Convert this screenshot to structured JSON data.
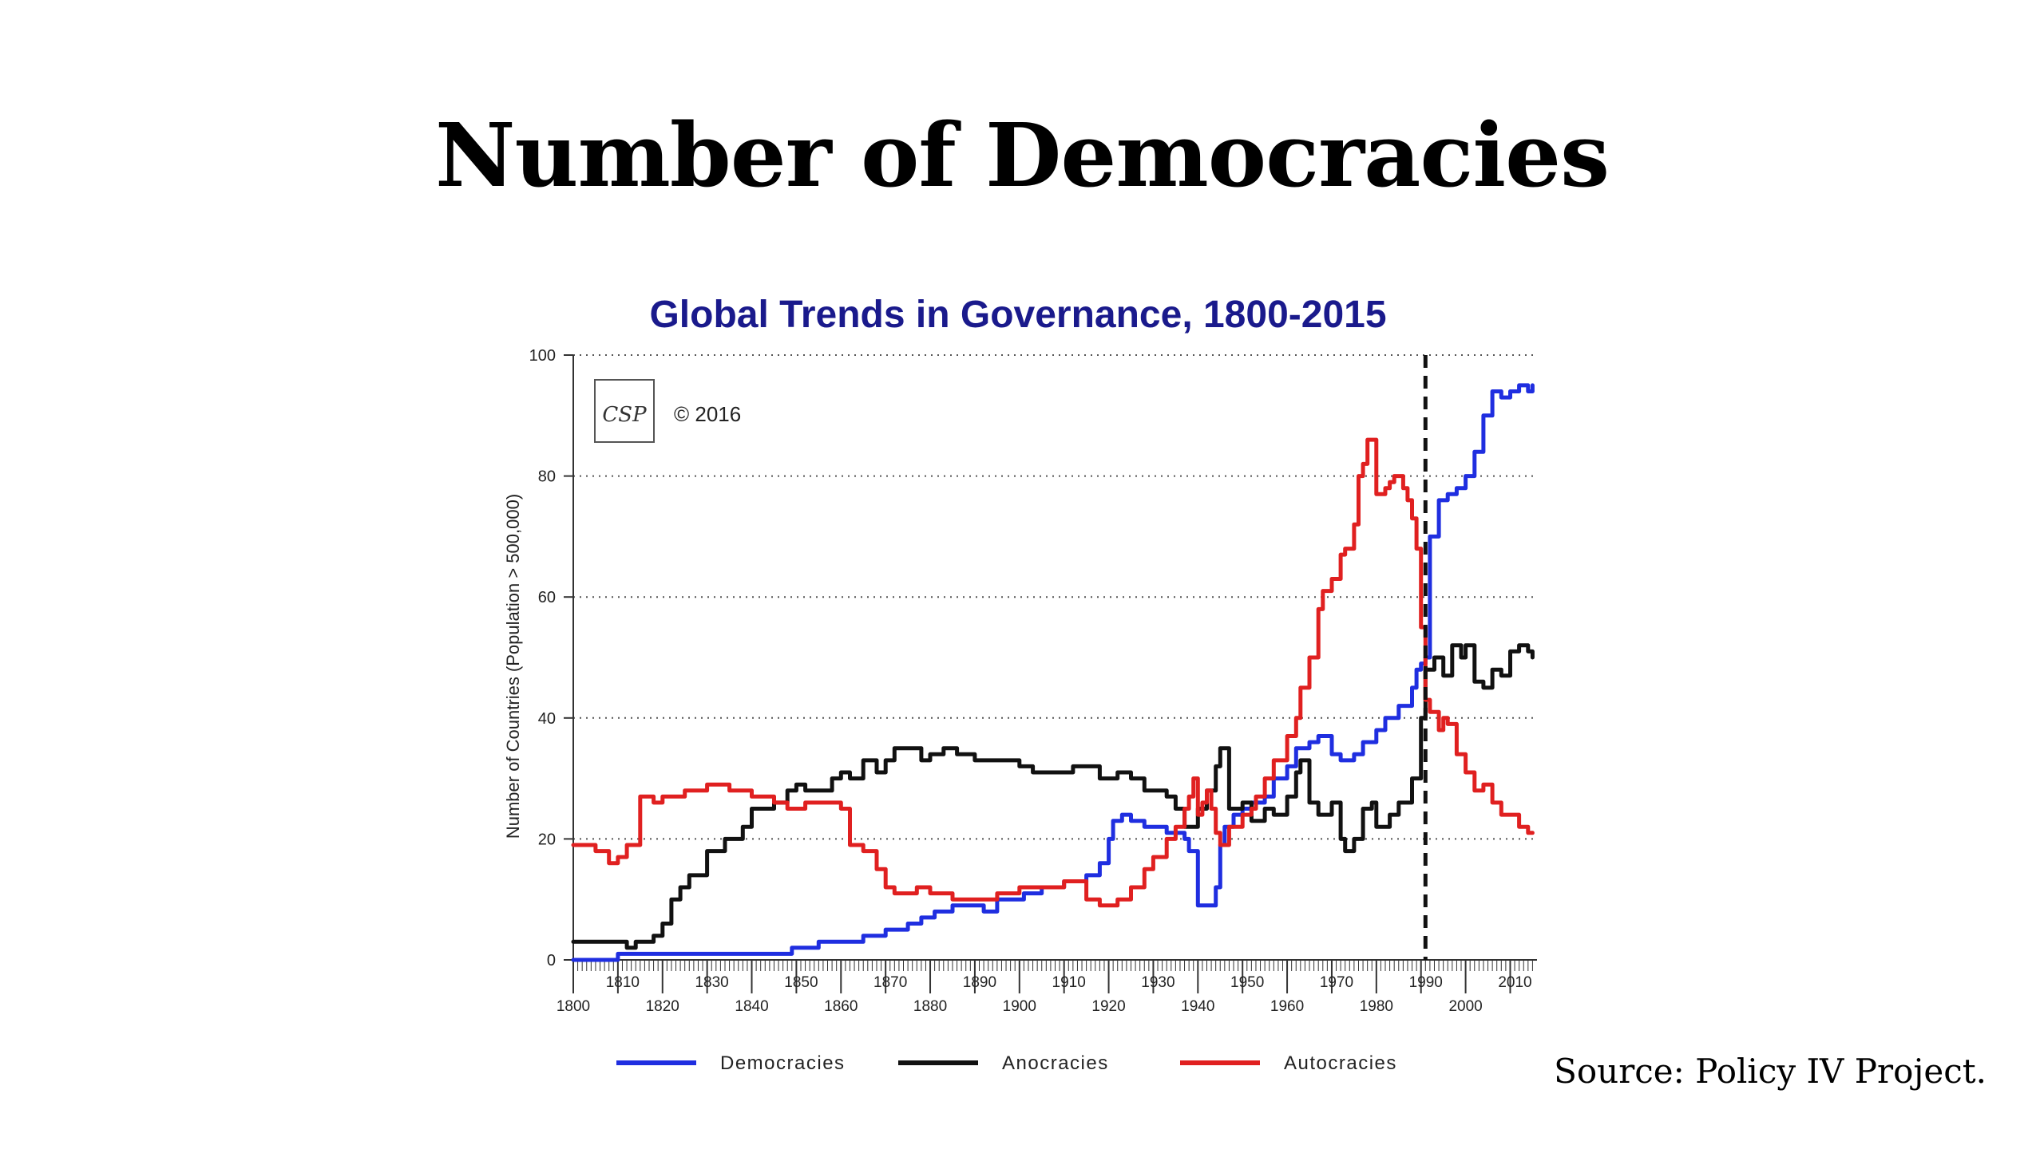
{
  "slide": {
    "title": "Number of Democracies",
    "source": "Source: Policy IV Project."
  },
  "chart_data": {
    "type": "line",
    "title": "Global Trends in Governance, 1800-2015",
    "xlabel": "",
    "ylabel": "Number of Countries (Population > 500,000)",
    "xlim": [
      1800,
      2016
    ],
    "ylim": [
      0,
      100
    ],
    "yticks": [
      0,
      20,
      40,
      60,
      80,
      100
    ],
    "xticks_major_lower": [
      1800,
      1820,
      1840,
      1860,
      1880,
      1900,
      1920,
      1940,
      1960,
      1980,
      2000
    ],
    "xticks_major_upper": [
      1810,
      1830,
      1850,
      1870,
      1890,
      1910,
      1930,
      1950,
      1970,
      1990,
      2010
    ],
    "grid": "horizontal dotted",
    "reference_line": {
      "x": 1991,
      "style": "dashed"
    },
    "logo": {
      "text": "CSP",
      "copyright": "© 2016"
    },
    "legend_position": "bottom",
    "colors": {
      "title": "#1a1a8c",
      "Democracies": "#1f2ee0",
      "Anocracies": "#111111",
      "Autocracies": "#e02020"
    },
    "series": [
      {
        "name": "Democracies",
        "x": [
          1800,
          1809,
          1810,
          1819,
          1820,
          1838,
          1840,
          1848,
          1849,
          1855,
          1860,
          1865,
          1870,
          1875,
          1878,
          1881,
          1885,
          1890,
          1892,
          1895,
          1900,
          1901,
          1905,
          1910,
          1912,
          1915,
          1917,
          1918,
          1920,
          1921,
          1923,
          1925,
          1928,
          1930,
          1933,
          1935,
          1937,
          1938,
          1940,
          1941,
          1943,
          1944,
          1945,
          1946,
          1948,
          1950,
          1952,
          1955,
          1957,
          1960,
          1962,
          1965,
          1967,
          1970,
          1972,
          1975,
          1977,
          1980,
          1982,
          1985,
          1986,
          1988,
          1989,
          1990,
          1991,
          1992,
          1994,
          1996,
          1998,
          2000,
          2002,
          2004,
          2006,
          2008,
          2010,
          2012,
          2014,
          2015
        ],
        "values": [
          0,
          0,
          1,
          1,
          1,
          1,
          1,
          1,
          2,
          3,
          3,
          4,
          5,
          6,
          7,
          8,
          9,
          9,
          8,
          10,
          10,
          11,
          12,
          13,
          13,
          14,
          14,
          16,
          20,
          23,
          24,
          23,
          22,
          22,
          21,
          21,
          20,
          18,
          9,
          9,
          9,
          12,
          19,
          22,
          24,
          25,
          26,
          27,
          30,
          32,
          35,
          36,
          37,
          34,
          33,
          34,
          36,
          38,
          40,
          42,
          42,
          45,
          48,
          49,
          50,
          70,
          76,
          77,
          78,
          80,
          84,
          90,
          94,
          93,
          94,
          95,
          94,
          95
        ]
      },
      {
        "name": "Anocracies",
        "x": [
          1800,
          1810,
          1812,
          1814,
          1816,
          1818,
          1820,
          1822,
          1824,
          1826,
          1830,
          1834,
          1838,
          1840,
          1845,
          1848,
          1850,
          1852,
          1855,
          1858,
          1860,
          1862,
          1865,
          1868,
          1870,
          1872,
          1875,
          1878,
          1880,
          1883,
          1886,
          1890,
          1895,
          1900,
          1903,
          1906,
          1910,
          1912,
          1915,
          1918,
          1920,
          1922,
          1925,
          1928,
          1930,
          1933,
          1935,
          1937,
          1940,
          1942,
          1944,
          1945,
          1947,
          1950,
          1952,
          1955,
          1957,
          1960,
          1962,
          1963,
          1965,
          1967,
          1970,
          1972,
          1973,
          1975,
          1977,
          1979,
          1980,
          1983,
          1985,
          1988,
          1990,
          1991,
          1993,
          1995,
          1997,
          1999,
          2000,
          2002,
          2004,
          2006,
          2008,
          2010,
          2012,
          2014,
          2015
        ],
        "values": [
          3,
          3,
          2,
          3,
          3,
          4,
          6,
          10,
          12,
          14,
          18,
          20,
          22,
          25,
          26,
          28,
          29,
          28,
          28,
          30,
          31,
          30,
          33,
          31,
          33,
          35,
          35,
          33,
          34,
          35,
          34,
          33,
          33,
          32,
          31,
          31,
          31,
          32,
          32,
          30,
          30,
          31,
          30,
          28,
          28,
          27,
          25,
          22,
          25,
          28,
          32,
          35,
          25,
          26,
          23,
          25,
          24,
          27,
          31,
          33,
          26,
          24,
          26,
          20,
          18,
          20,
          25,
          26,
          22,
          24,
          26,
          30,
          40,
          48,
          50,
          47,
          52,
          50,
          52,
          46,
          45,
          48,
          47,
          51,
          52,
          51,
          50
        ]
      },
      {
        "name": "Autocracies",
        "x": [
          1800,
          1805,
          1808,
          1810,
          1812,
          1815,
          1818,
          1820,
          1825,
          1830,
          1835,
          1840,
          1845,
          1848,
          1850,
          1852,
          1855,
          1860,
          1862,
          1865,
          1868,
          1870,
          1872,
          1875,
          1877,
          1880,
          1882,
          1885,
          1888,
          1890,
          1895,
          1900,
          1905,
          1910,
          1912,
          1915,
          1917,
          1918,
          1920,
          1922,
          1925,
          1928,
          1930,
          1933,
          1935,
          1937,
          1938,
          1939,
          1940,
          1941,
          1942,
          1943,
          1944,
          1945,
          1947,
          1950,
          1952,
          1953,
          1955,
          1957,
          1960,
          1962,
          1963,
          1965,
          1967,
          1968,
          1970,
          1972,
          1973,
          1975,
          1976,
          1977,
          1978,
          1980,
          1982,
          1983,
          1984,
          1985,
          1986,
          1987,
          1988,
          1989,
          1990,
          1991,
          1992,
          1994,
          1995,
          1996,
          1998,
          2000,
          2002,
          2004,
          2006,
          2008,
          2010,
          2012,
          2014,
          2015
        ],
        "values": [
          19,
          18,
          16,
          17,
          19,
          27,
          26,
          27,
          28,
          29,
          28,
          27,
          26,
          25,
          25,
          26,
          26,
          25,
          19,
          18,
          15,
          12,
          11,
          11,
          12,
          11,
          11,
          10,
          10,
          10,
          11,
          12,
          12,
          13,
          13,
          10,
          10,
          9,
          9,
          10,
          12,
          15,
          17,
          20,
          22,
          25,
          27,
          30,
          24,
          26,
          28,
          25,
          21,
          19,
          22,
          24,
          25,
          27,
          30,
          33,
          37,
          40,
          45,
          50,
          58,
          61,
          63,
          67,
          68,
          72,
          80,
          82,
          86,
          77,
          78,
          79,
          80,
          80,
          78,
          76,
          73,
          68,
          55,
          43,
          41,
          38,
          40,
          39,
          34,
          31,
          28,
          29,
          26,
          24,
          24,
          22,
          21,
          21
        ]
      }
    ]
  }
}
